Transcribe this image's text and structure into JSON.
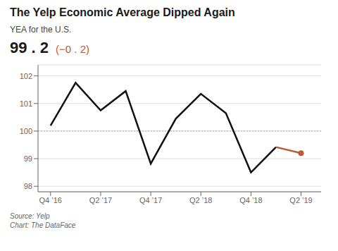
{
  "chart_data": {
    "type": "line",
    "title": "The Yelp Economic Average Dipped Again",
    "subtitle": "YEA for the U.S.",
    "annotations": [
      "99 . 2",
      "(−0 . 2)",
      "Source: Yelp",
      "Chart: The DataFace"
    ],
    "series": [
      {
        "color": "#111111",
        "x": [
          0,
          1,
          2,
          3,
          4,
          5,
          6,
          7,
          8,
          9
        ],
        "values": [
          100.2,
          101.75,
          100.75,
          101.45,
          98.82,
          100.45,
          101.35,
          100.65,
          98.5,
          99.42
        ]
      },
      {
        "color": "#b85c38",
        "marker": "last",
        "x": [
          9,
          10
        ],
        "values": [
          99.42,
          99.2
        ]
      }
    ],
    "reference_line": 100,
    "xlim": [
      -0.5,
      10.8
    ],
    "xticks": [
      {
        "value": 0,
        "label": "Q4 ’16"
      },
      {
        "value": 2,
        "label": "Q2 ’17"
      },
      {
        "value": 4,
        "label": "Q4 ’17"
      },
      {
        "value": 6,
        "label": "Q2 ’18"
      },
      {
        "value": 8,
        "label": "Q4 ’18"
      },
      {
        "value": 10,
        "label": "Q2 ’19"
      }
    ],
    "ylim": [
      97.8,
      102.4
    ],
    "yticks": [
      98,
      99,
      100,
      101,
      102
    ],
    "grid": true
  }
}
